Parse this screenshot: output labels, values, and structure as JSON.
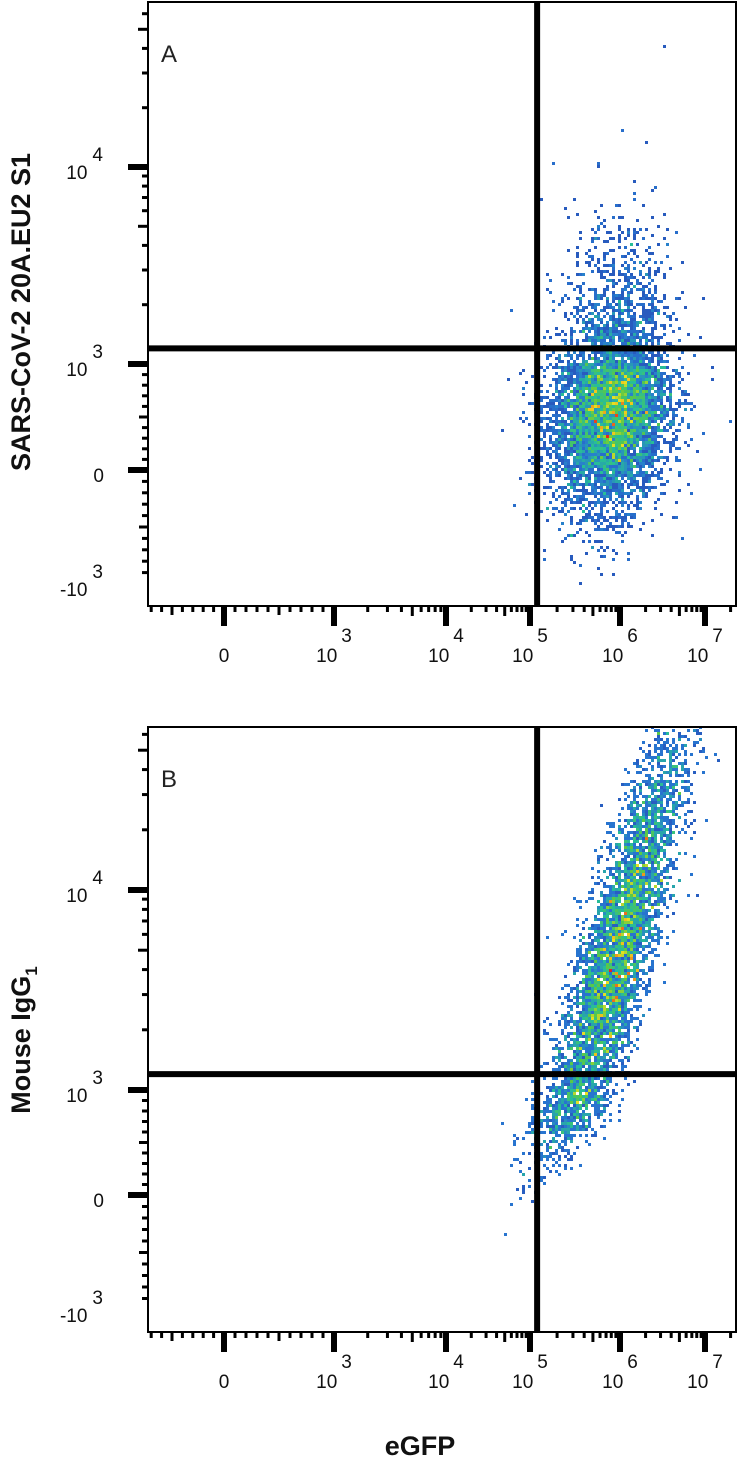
{
  "chart_data": [
    {
      "type": "scatter",
      "subtype": "flow-cytometry-density-plot",
      "panel_label": "A",
      "xlabel": "eGFP",
      "ylabel": "SARS-CoV-2 20A.EU2 S1",
      "ylabel_sub": "",
      "x_scale": "biexponential",
      "y_scale": "biexponential",
      "x_ticks": [
        {
          "base": "0",
          "exp": ""
        },
        {
          "base": "10",
          "exp": "3"
        },
        {
          "base": "10",
          "exp": "4"
        },
        {
          "base": "10",
          "exp": "5"
        },
        {
          "base": "10",
          "exp": "6"
        },
        {
          "base": "10",
          "exp": "7"
        }
      ],
      "x_tick_values": [
        0,
        1000,
        10000,
        100000,
        1000000,
        10000000
      ],
      "y_ticks": [
        {
          "base": "-10",
          "exp": "3"
        },
        {
          "base": "0",
          "exp": ""
        },
        {
          "base": "10",
          "exp": "3"
        },
        {
          "base": "10",
          "exp": "4"
        }
      ],
      "y_tick_values": [
        -1000,
        0,
        1000,
        10000
      ],
      "quadrant_gates": {
        "x": 120000,
        "y": 1200
      },
      "population": {
        "x_median": 800000,
        "y_median": 570,
        "x_spread_decades": 0.33,
        "y_spread_decades": 0.45,
        "correlation": 0.15
      },
      "grid": false
    },
    {
      "type": "scatter",
      "subtype": "flow-cytometry-density-plot",
      "panel_label": "B",
      "xlabel": "eGFP",
      "ylabel": "Mouse IgG",
      "ylabel_sub": "1",
      "x_scale": "biexponential",
      "y_scale": "biexponential",
      "x_ticks": [
        {
          "base": "0",
          "exp": ""
        },
        {
          "base": "10",
          "exp": "3"
        },
        {
          "base": "10",
          "exp": "4"
        },
        {
          "base": "10",
          "exp": "5"
        },
        {
          "base": "10",
          "exp": "6"
        },
        {
          "base": "10",
          "exp": "7"
        }
      ],
      "x_tick_values": [
        0,
        1000,
        10000,
        100000,
        1000000,
        10000000
      ],
      "y_ticks": [
        {
          "base": "-10",
          "exp": "3"
        },
        {
          "base": "0",
          "exp": ""
        },
        {
          "base": "10",
          "exp": "3"
        },
        {
          "base": "10",
          "exp": "4"
        }
      ],
      "y_tick_values": [
        -1000,
        0,
        1000,
        10000
      ],
      "quadrant_gates": {
        "x": 120000,
        "y": 1200
      },
      "population": {
        "x_median": 900000,
        "y_median": 4500,
        "x_spread_decades": 0.38,
        "y_spread_decades": 0.55,
        "correlation": 0.85
      },
      "grid": false
    }
  ],
  "colors": {
    "density_low": "#2b3fa8",
    "density_mid": "#2fbf6a",
    "density_high_yellow": "#f2e521",
    "density_peak": "#e8231e",
    "axes": "#000000",
    "gate": "#000000"
  }
}
